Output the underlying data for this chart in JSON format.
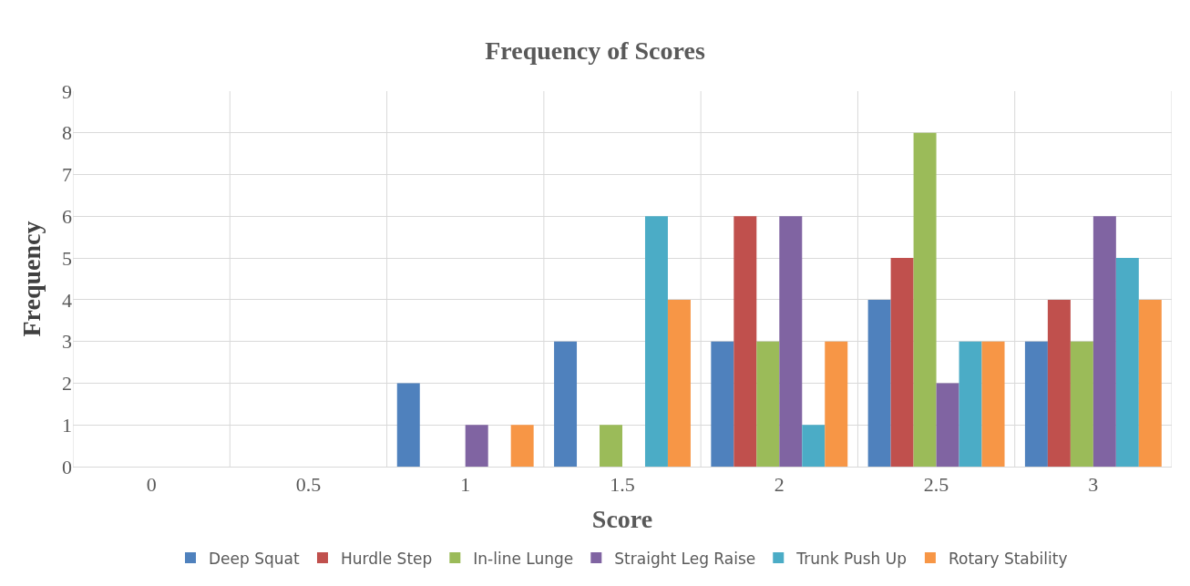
{
  "chart_data": {
    "type": "bar",
    "title": "Frequency of Scores",
    "xlabel": "Score",
    "ylabel": "Frequency",
    "categories": [
      "0",
      "0.5",
      "1",
      "1.5",
      "2",
      "2.5",
      "3"
    ],
    "series": [
      {
        "name": "Deep Squat",
        "color": "#4f81bd",
        "values": [
          0,
          0,
          2,
          3,
          3,
          4,
          3
        ]
      },
      {
        "name": "Hurdle Step",
        "color": "#c0504d",
        "values": [
          0,
          0,
          0,
          0,
          6,
          5,
          4
        ]
      },
      {
        "name": "In-line Lunge",
        "color": "#9bbb59",
        "values": [
          0,
          0,
          0,
          1,
          3,
          8,
          3
        ]
      },
      {
        "name": "Straight Leg Raise",
        "color": "#8064a2",
        "values": [
          0,
          0,
          1,
          0,
          6,
          2,
          6
        ]
      },
      {
        "name": "Trunk Push Up",
        "color": "#4bacc6",
        "values": [
          0,
          0,
          0,
          6,
          1,
          3,
          5
        ]
      },
      {
        "name": "Rotary Stability",
        "color": "#f79646",
        "values": [
          0,
          0,
          1,
          4,
          3,
          3,
          4
        ]
      }
    ],
    "ylim": [
      0,
      9
    ],
    "yticks": [
      0,
      1,
      2,
      3,
      4,
      5,
      6,
      7,
      8,
      9
    ],
    "grid": true,
    "legend": "bottom"
  }
}
